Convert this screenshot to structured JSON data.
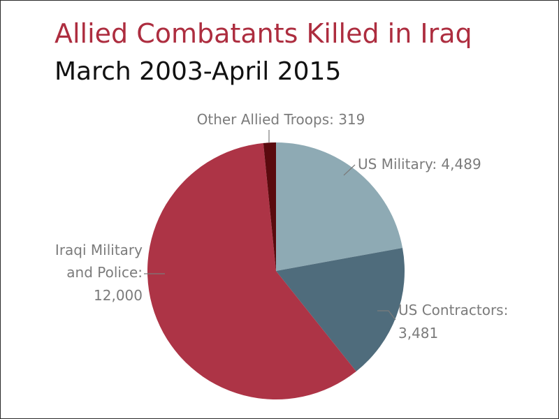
{
  "chart_data": {
    "type": "pie",
    "title": "Allied Combatants Killed in Iraq",
    "subtitle": "March 2003-April 2015",
    "slices": [
      {
        "label": "US Military: 4,489",
        "value": 4489,
        "color": "#8eaab4"
      },
      {
        "label": "US Contractors: 3,481",
        "value": 3481,
        "color": "#4f6c7c"
      },
      {
        "label": "Iraqi Military and Police: 12,000",
        "value": 12000,
        "color": "#ad3446"
      },
      {
        "label": "Other Allied Troops: 319",
        "value": 319,
        "color": "#5a0a0e"
      }
    ],
    "label_lines": {
      "other": "Other Allied Troops: 319",
      "us_military": "US Military: 4,489",
      "iraqi_1": "Iraqi Military",
      "iraqi_2": "and Police:",
      "iraqi_3": "12,000",
      "contractors_1": "US Contractors:",
      "contractors_2": "3,481"
    }
  }
}
